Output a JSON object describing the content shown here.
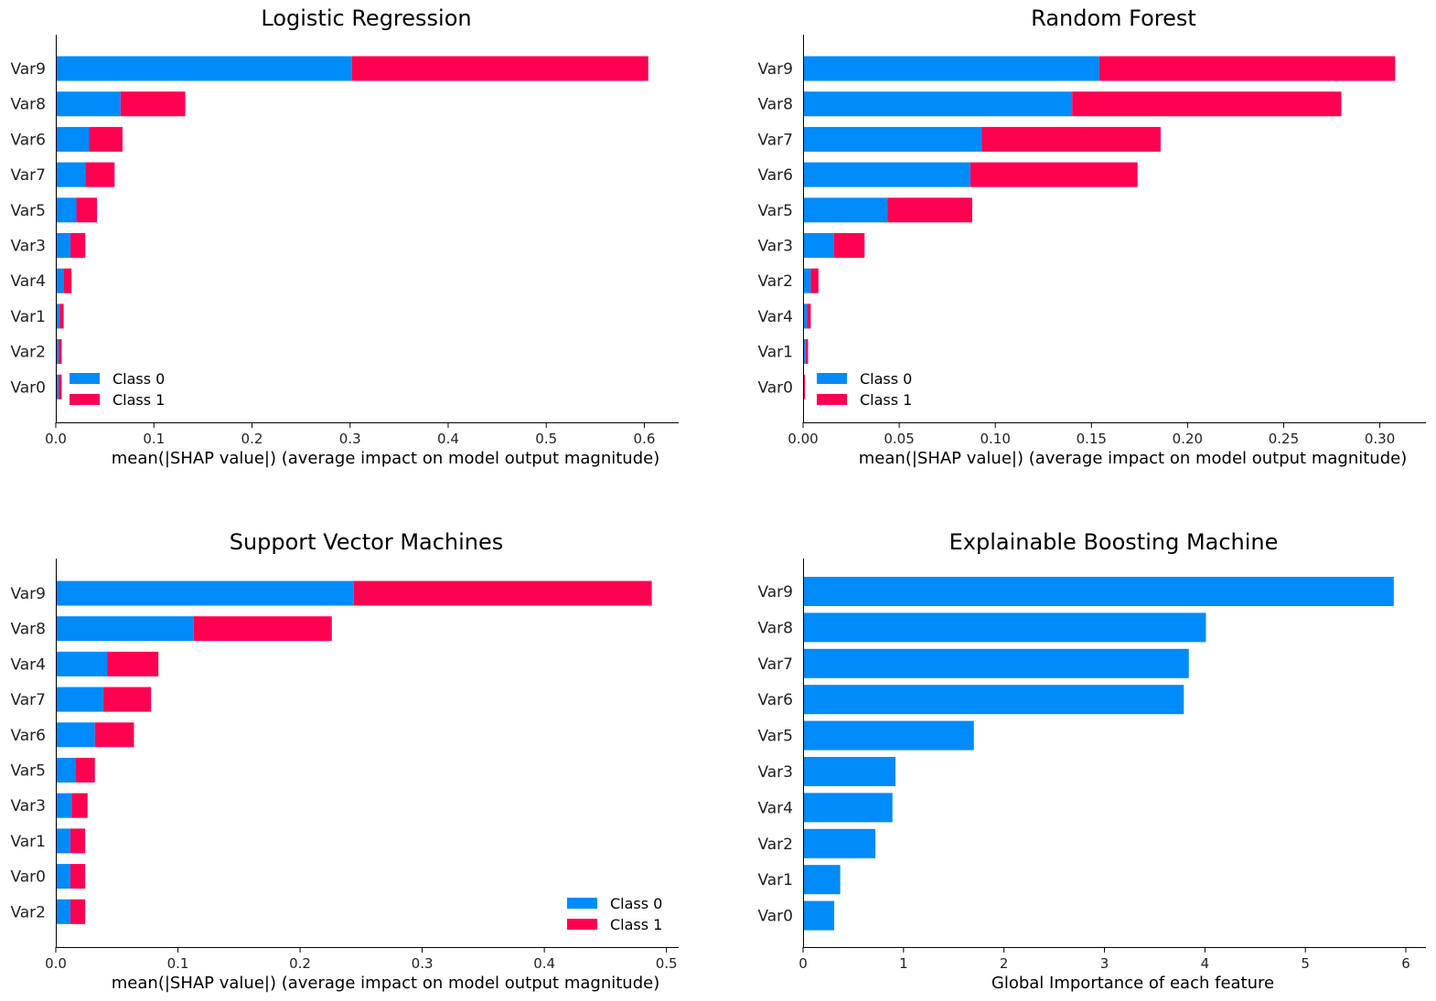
{
  "colors": {
    "class0": "#008bfb",
    "class1": "#ff0051"
  },
  "chart_data": [
    {
      "type": "bar",
      "orientation": "horizontal",
      "stacked": true,
      "title": "Logistic Regression",
      "xlabel": "mean(|SHAP value|) (average impact on model output magnitude)",
      "xlim": [
        0,
        0.635
      ],
      "xticks": [
        "0.0",
        "0.1",
        "0.2",
        "0.3",
        "0.4",
        "0.5",
        "0.6"
      ],
      "xtick_values": [
        0,
        0.1,
        0.2,
        0.3,
        0.4,
        0.5,
        0.6
      ],
      "categories": [
        "Var9",
        "Var8",
        "Var6",
        "Var7",
        "Var5",
        "Var3",
        "Var4",
        "Var1",
        "Var2",
        "Var0"
      ],
      "series": [
        {
          "name": "Class 0",
          "values": [
            0.302,
            0.066,
            0.034,
            0.03,
            0.021,
            0.015,
            0.008,
            0.004,
            0.003,
            0.003
          ]
        },
        {
          "name": "Class 1",
          "values": [
            0.302,
            0.066,
            0.034,
            0.03,
            0.021,
            0.015,
            0.008,
            0.004,
            0.003,
            0.003
          ]
        }
      ],
      "legend": "lower-left"
    },
    {
      "type": "bar",
      "orientation": "horizontal",
      "stacked": true,
      "title": "Random Forest",
      "xlabel": "mean(|SHAP value|) (average impact on model output magnitude)",
      "xlim": [
        0,
        0.324
      ],
      "xticks": [
        "0.00",
        "0.05",
        "0.10",
        "0.15",
        "0.20",
        "0.25",
        "0.30"
      ],
      "xtick_values": [
        0,
        0.05,
        0.1,
        0.15,
        0.2,
        0.25,
        0.3
      ],
      "categories": [
        "Var9",
        "Var8",
        "Var7",
        "Var6",
        "Var5",
        "Var3",
        "Var2",
        "Var4",
        "Var1",
        "Var0"
      ],
      "series": [
        {
          "name": "Class 0",
          "values": [
            0.154,
            0.14,
            0.093,
            0.087,
            0.044,
            0.016,
            0.004,
            0.002,
            0.0013,
            0.0005
          ]
        },
        {
          "name": "Class 1",
          "values": [
            0.154,
            0.14,
            0.093,
            0.087,
            0.044,
            0.016,
            0.004,
            0.002,
            0.0013,
            0.0005
          ]
        }
      ],
      "legend": "lower-left"
    },
    {
      "type": "bar",
      "orientation": "horizontal",
      "stacked": true,
      "title": "Support Vector Machines",
      "xlabel": "mean(|SHAP value|) (average impact on model output magnitude)",
      "xlim": [
        0,
        0.51
      ],
      "xticks": [
        "0.0",
        "0.1",
        "0.2",
        "0.3",
        "0.4",
        "0.5"
      ],
      "xtick_values": [
        0,
        0.1,
        0.2,
        0.3,
        0.4,
        0.5
      ],
      "categories": [
        "Var9",
        "Var8",
        "Var4",
        "Var7",
        "Var6",
        "Var5",
        "Var3",
        "Var1",
        "Var0",
        "Var2"
      ],
      "series": [
        {
          "name": "Class 0",
          "values": [
            0.244,
            0.113,
            0.042,
            0.039,
            0.032,
            0.016,
            0.013,
            0.012,
            0.012,
            0.012
          ]
        },
        {
          "name": "Class 1",
          "values": [
            0.244,
            0.113,
            0.042,
            0.039,
            0.032,
            0.016,
            0.013,
            0.012,
            0.012,
            0.012
          ]
        }
      ],
      "legend": "lower-right"
    },
    {
      "type": "bar",
      "orientation": "horizontal",
      "stacked": false,
      "title": "Explainable Boosting Machine",
      "xlabel": "Global Importance of each feature",
      "xlim": [
        0,
        6.2
      ],
      "xticks": [
        "0",
        "1",
        "2",
        "3",
        "4",
        "5",
        "6"
      ],
      "xtick_values": [
        0,
        1,
        2,
        3,
        4,
        5,
        6
      ],
      "categories": [
        "Var9",
        "Var8",
        "Var7",
        "Var6",
        "Var5",
        "Var3",
        "Var4",
        "Var2",
        "Var1",
        "Var0"
      ],
      "series": [
        {
          "values": [
            5.88,
            4.01,
            3.84,
            3.79,
            1.7,
            0.92,
            0.89,
            0.72,
            0.37,
            0.31
          ]
        }
      ]
    }
  ]
}
